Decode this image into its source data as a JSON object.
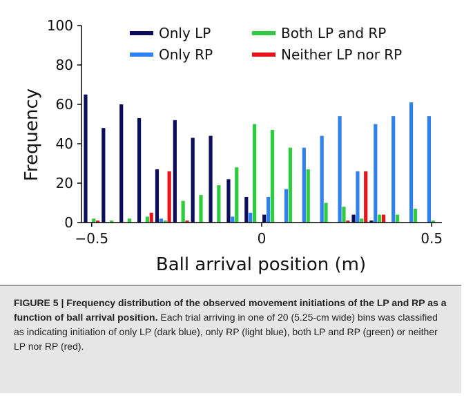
{
  "chart_data": {
    "type": "bar",
    "xlabel": "Ball arrival position (m)",
    "ylabel": "Frequency",
    "ylim": [
      0,
      100
    ],
    "xlim": [
      -0.53,
      0.53
    ],
    "yticks": [
      "0",
      "20",
      "40",
      "60",
      "80",
      "100"
    ],
    "xticks": [
      {
        "value": -0.5,
        "label": "−0.5"
      },
      {
        "value": 0,
        "label": "0"
      },
      {
        "value": 0.5,
        "label": "0.5"
      }
    ],
    "legend_position": "top",
    "x": [
      -0.4999,
      -0.4474,
      -0.3948,
      -0.3423,
      -0.2898,
      -0.2372,
      -0.1847,
      -0.1322,
      -0.0796,
      -0.0271,
      0.0254,
      0.078,
      0.1305,
      0.183,
      0.2356,
      0.2881,
      0.3406,
      0.3932,
      0.4457,
      0.4982
    ],
    "series": [
      {
        "name": "Only LP",
        "color": "#0d0d5e",
        "values": [
          65,
          48,
          60,
          53,
          27,
          52,
          43,
          44,
          22,
          13,
          4,
          0,
          0,
          0,
          0,
          4,
          1,
          0,
          0,
          0
        ]
      },
      {
        "name": "Only RP",
        "color": "#2f80f0",
        "values": [
          0,
          0,
          0,
          0,
          2,
          0,
          0,
          0,
          3,
          5,
          13,
          17,
          38,
          44,
          54,
          26,
          50,
          54,
          61,
          54
        ]
      },
      {
        "name": "Both LP and RP",
        "color": "#2fcc3f",
        "values": [
          2,
          1,
          2,
          3,
          1,
          11,
          14,
          19,
          28,
          50,
          47,
          38,
          27,
          10,
          8,
          2,
          4,
          4,
          7,
          1
        ]
      },
      {
        "name": "Neither LP nor RP",
        "color": "#e8141c",
        "values": [
          1,
          0,
          0,
          5,
          26,
          1,
          0,
          0,
          0,
          0,
          0,
          0,
          0,
          0,
          1,
          26,
          4,
          0,
          0,
          0
        ]
      }
    ]
  },
  "caption": {
    "label": "FIGURE 5 | Frequency distribution of the observed movement initiations of the LP and RP as a function of ball arrival position.",
    "body": " Each trial arriving in one of 20 (5.25-cm wide) bins was classified as indicating initiation of only LP (dark blue), only RP (light blue), both LP and RP (green) or neither LP nor RP (red)."
  }
}
